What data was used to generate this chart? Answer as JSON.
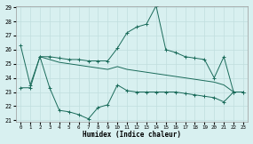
{
  "xlabel": "Humidex (Indice chaleur)",
  "line1_x": [
    0,
    1,
    2,
    3,
    4,
    5,
    6,
    7,
    8,
    9,
    10,
    11,
    12,
    13,
    14,
    15,
    16,
    17,
    18,
    19,
    20,
    21,
    22,
    23
  ],
  "line1_y": [
    26.3,
    23.5,
    25.5,
    25.5,
    25.4,
    25.3,
    25.3,
    25.2,
    25.2,
    25.2,
    26.1,
    27.2,
    27.6,
    27.8,
    29.1,
    26.0,
    25.8,
    25.5,
    25.4,
    25.3,
    24.0,
    25.5,
    23.0,
    23.0
  ],
  "line2_x": [
    0,
    1,
    2,
    3,
    4,
    5,
    6,
    7,
    8,
    9,
    10,
    11,
    12,
    13,
    14,
    15,
    16,
    17,
    18,
    19,
    20,
    21,
    22,
    23
  ],
  "line2_y": [
    23.3,
    23.3,
    25.5,
    23.3,
    21.7,
    21.6,
    21.4,
    21.1,
    21.9,
    22.1,
    23.5,
    23.1,
    23.0,
    23.0,
    23.0,
    23.0,
    23.0,
    22.9,
    22.8,
    22.7,
    22.6,
    22.3,
    23.0,
    23.0
  ],
  "line3_x": [
    2,
    3,
    4,
    5,
    6,
    7,
    8,
    9,
    10,
    11,
    12,
    13,
    14,
    15,
    16,
    17,
    18,
    19,
    20,
    21,
    22,
    23
  ],
  "line3_y": [
    25.5,
    25.3,
    25.1,
    25.0,
    24.9,
    24.8,
    24.7,
    24.6,
    24.8,
    24.6,
    24.5,
    24.4,
    24.3,
    24.2,
    24.1,
    24.0,
    23.9,
    23.8,
    23.7,
    23.5,
    23.0,
    23.0
  ],
  "line_color": "#1a6b5a",
  "bg_color": "#d8f0f0",
  "grid_color": "#c0dede",
  "ylim": [
    21,
    29
  ],
  "xlim": [
    -0.5,
    23.5
  ],
  "yticks": [
    21,
    22,
    23,
    24,
    25,
    26,
    27,
    28,
    29
  ],
  "xticks": [
    0,
    1,
    2,
    3,
    4,
    5,
    6,
    7,
    8,
    9,
    10,
    11,
    12,
    13,
    14,
    15,
    16,
    17,
    18,
    19,
    20,
    21,
    22,
    23
  ]
}
